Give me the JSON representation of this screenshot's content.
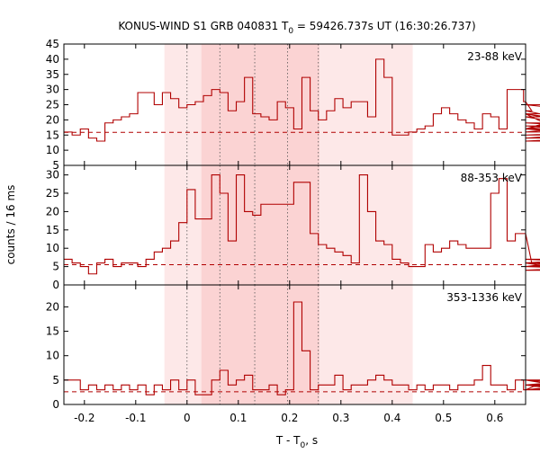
{
  "title": {
    "prefix": "KONUS-WIND S1 GRB 040831 T",
    "sub": "0",
    "suffix": " = 59426.737s UT (16:30:26.737)"
  },
  "ylabel": "counts / 16 ms",
  "xlabel": {
    "prefix": "T - T",
    "sub": "0",
    "suffix": ", s"
  },
  "colors": {
    "line": "#b00000",
    "band_outer": "#fde8e8",
    "band_inner": "#fbd3d3",
    "vline": "#555555"
  },
  "chart_data": {
    "type": "line",
    "xlim": [
      -0.24,
      0.66
    ],
    "xticks": [
      -0.2,
      -0.1,
      0,
      0.1,
      0.2,
      0.3,
      0.4,
      0.5,
      0.6
    ],
    "xtick_labels": [
      "-0.2",
      "-0.1",
      "0",
      "0.1",
      "0.2",
      "0.3",
      "0.4",
      "0.5",
      "0.6"
    ],
    "shaded_regions": [
      {
        "from": -0.044,
        "to": 0.44,
        "style": "outer"
      },
      {
        "from": 0.028,
        "to": 0.258,
        "style": "inner"
      }
    ],
    "vlines": [
      0.0,
      0.064,
      0.132,
      0.196,
      0.256
    ],
    "panels": [
      {
        "label": "23-88 keV",
        "ylim": [
          5,
          45
        ],
        "yticks": [
          5,
          10,
          15,
          20,
          25,
          30,
          35,
          40,
          45
        ],
        "ytick_labels": [
          "5",
          "10",
          "15",
          "20",
          "25",
          "30",
          "35",
          "40",
          "45"
        ],
        "background": 15.9,
        "bin_start": -0.24,
        "bin_width": 0.016,
        "values": [
          16,
          15,
          17,
          14,
          13,
          19,
          20,
          21,
          22,
          29,
          29,
          25,
          29,
          27,
          24,
          25,
          26,
          28,
          30,
          29,
          23,
          26,
          34,
          22,
          21,
          20,
          26,
          24,
          17,
          34,
          23,
          20,
          23,
          27,
          24,
          26,
          26,
          21,
          40,
          34,
          15,
          15,
          16,
          17,
          18,
          22,
          24,
          22,
          20,
          19,
          17,
          22,
          21,
          17,
          30,
          30,
          26,
          23,
          22,
          22,
          17,
          17,
          21,
          18,
          18,
          17,
          25,
          22,
          16,
          19,
          17,
          14,
          17,
          22,
          15,
          17,
          13,
          16
        ]
      },
      {
        "label": "88-353 keV",
        "ylim": [
          0,
          32.6
        ],
        "yticks": [
          0,
          5,
          10,
          15,
          20,
          25,
          30
        ],
        "ytick_labels": [
          "0",
          "5",
          "10",
          "15",
          "20",
          "25",
          "30"
        ],
        "background": 5.5,
        "bin_start": -0.24,
        "bin_width": 0.016,
        "values": [
          7,
          6,
          5,
          3,
          6,
          7,
          5,
          6,
          6,
          5,
          7,
          9,
          10,
          12,
          17,
          26,
          18,
          18,
          30,
          25,
          12,
          30,
          20,
          19,
          22,
          22,
          22,
          22,
          28,
          28,
          14,
          11,
          10,
          9,
          8,
          6,
          30,
          20,
          12,
          11,
          7,
          6,
          5,
          5,
          11,
          9,
          10,
          12,
          11,
          10,
          10,
          10,
          25,
          29,
          12,
          14,
          14,
          6,
          6,
          5,
          6,
          6,
          6,
          6,
          7,
          6,
          6,
          5,
          5,
          7,
          6,
          4,
          5,
          4,
          6,
          5,
          4,
          4
        ]
      },
      {
        "label": "353-1336 keV",
        "ylim": [
          0,
          24.5
        ],
        "yticks": [
          0,
          5,
          10,
          15,
          20
        ],
        "ytick_labels": [
          "0",
          "5",
          "10",
          "15",
          "20"
        ],
        "background": 2.6,
        "bin_start": -0.24,
        "bin_width": 0.016,
        "values": [
          5,
          5,
          3,
          4,
          3,
          4,
          3,
          4,
          3,
          4,
          2,
          4,
          3,
          5,
          3,
          5,
          2,
          2,
          5,
          7,
          4,
          5,
          6,
          3,
          3,
          4,
          2,
          3,
          21,
          11,
          3,
          4,
          4,
          6,
          3,
          4,
          4,
          5,
          6,
          5,
          4,
          4,
          3,
          4,
          3,
          4,
          4,
          3,
          4,
          4,
          5,
          8,
          4,
          4,
          3,
          5,
          3,
          3,
          3,
          5,
          4,
          3,
          4,
          5,
          4,
          4,
          3,
          4,
          3,
          4,
          4,
          5,
          3,
          4,
          3,
          3,
          4,
          3
        ]
      }
    ]
  }
}
